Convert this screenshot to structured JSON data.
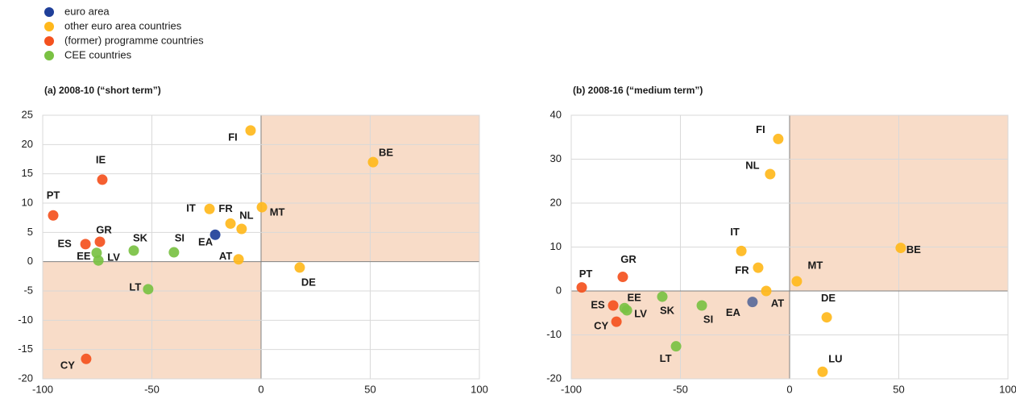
{
  "chart_data": [
    {
      "type": "scatter",
      "title": "(a) 2008-10 (“short term”)",
      "xlim": [
        -100,
        100
      ],
      "xticks": [
        -100,
        -50,
        0,
        50,
        100
      ],
      "ylim": [
        -20,
        25
      ],
      "yticks": [
        -20,
        -15,
        -10,
        -5,
        0,
        5,
        10,
        15,
        20,
        25
      ],
      "grid": true,
      "shaded_quadrants": [
        "lower-left",
        "upper-right"
      ],
      "shade_color": "#f8dcc8",
      "series": [
        {
          "name": "euro area",
          "color": "#1f3f99",
          "labels": [
            "EA"
          ],
          "x": [
            -21
          ],
          "values": [
            4.6
          ]
        },
        {
          "name": "other euro area countries",
          "color": "#ffb81c",
          "labels": [
            "FI",
            "BE",
            "MT",
            "IT",
            "FR",
            "NL",
            "AT",
            "DE"
          ],
          "x": [
            -4.8,
            51.3,
            0.4,
            -23.6,
            -14.0,
            -8.9,
            -10.3,
            17.7
          ],
          "values": [
            22.4,
            17.0,
            9.3,
            9.0,
            6.5,
            5.6,
            0.4,
            -1.0
          ]
        },
        {
          "name": "(former) programme countries",
          "color": "#f4511e",
          "labels": [
            "PT",
            "IE",
            "ES",
            "GR",
            "CY"
          ],
          "x": [
            -95.2,
            -72.7,
            -80.4,
            -73.8,
            -80.1
          ],
          "values": [
            7.9,
            14.0,
            3.0,
            3.4,
            -16.6
          ]
        },
        {
          "name": "CEE countries",
          "color": "#7ac143",
          "labels": [
            "EE",
            "LV",
            "SK",
            "SI",
            "LT"
          ],
          "x": [
            -75.3,
            -74.5,
            -58.3,
            -39.9,
            -51.7
          ],
          "values": [
            1.5,
            0.2,
            1.9,
            1.6,
            -4.7
          ]
        }
      ]
    },
    {
      "type": "scatter",
      "title": "(b) 2008-16 (“medium term”)",
      "xlim": [
        -100,
        100
      ],
      "xticks": [
        -100,
        -50,
        0,
        50,
        100
      ],
      "ylim": [
        -20,
        40
      ],
      "yticks": [
        -20,
        -10,
        0,
        10,
        20,
        30,
        40
      ],
      "grid": true,
      "shaded_quadrants": [
        "lower-left",
        "upper-right"
      ],
      "shade_color": "#f8dcc8",
      "series": [
        {
          "color": "#5a6a9a",
          "labels": [
            "EA"
          ],
          "x": [
            -17
          ],
          "values": [
            -2.5
          ]
        },
        {
          "color": "#ffb81c",
          "labels": [
            "FI",
            "NL",
            "IT",
            "FR",
            "MT",
            "AT",
            "BE",
            "DE",
            "LU"
          ],
          "x": [
            -5.2,
            -8.9,
            -22.1,
            -14.4,
            3.3,
            -10.7,
            50.9,
            17.0,
            15.1
          ],
          "values": [
            34.6,
            26.6,
            9.1,
            5.3,
            2.2,
            0.0,
            9.8,
            -6.0,
            -18.4
          ]
        },
        {
          "color": "#f4511e",
          "labels": [
            "PT",
            "GR",
            "ES",
            "CY"
          ],
          "x": [
            -95.2,
            -76.4,
            -80.8,
            -79.3
          ],
          "values": [
            0.8,
            3.2,
            -3.3,
            -7.0
          ]
        },
        {
          "color": "#7ac143",
          "labels": [
            "EE",
            "LV",
            "SK",
            "SI",
            "LT"
          ],
          "x": [
            -75.6,
            -74.5,
            -58.3,
            -40.2,
            -52.0
          ],
          "values": [
            -3.9,
            -4.4,
            -1.3,
            -3.3,
            -12.6
          ]
        }
      ]
    }
  ]
}
